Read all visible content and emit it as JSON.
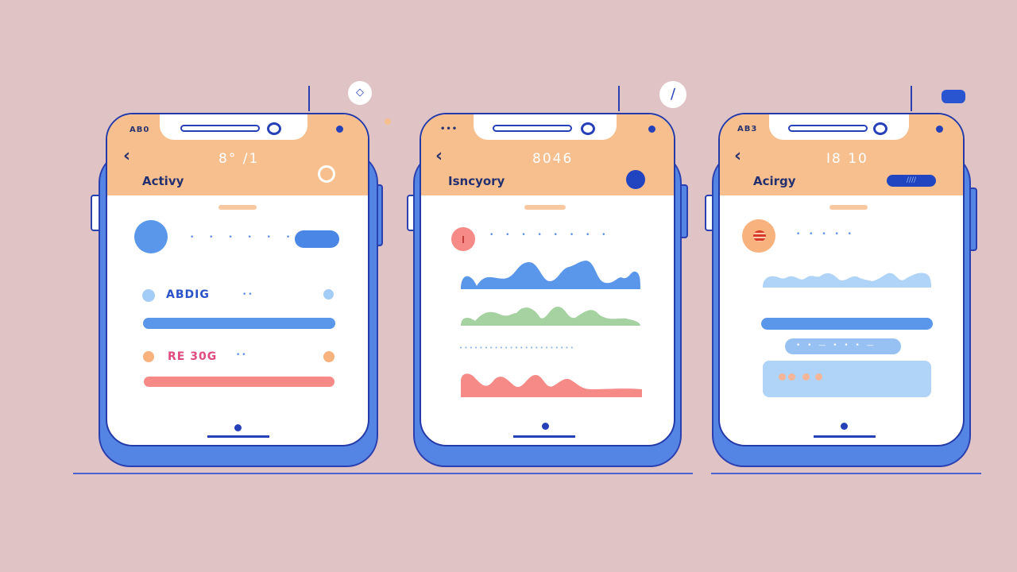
{
  "colors": {
    "background": "#e0c3c4",
    "phone": "#5484e4",
    "header": "#f8bf8e",
    "accent": "#2640b8",
    "blue_bar": "#5a96ea",
    "red_bar": "#f68a86",
    "green_wave": "#a6d2a2",
    "light_blue": "#b0d4f7"
  },
  "phones": [
    {
      "status": "AB0",
      "time": "8° /1",
      "title": "Activy",
      "rows": [
        {
          "label": "ABDIG",
          "dots": "••"
        },
        {
          "label": "RE 30G",
          "dots": "••"
        }
      ],
      "top_dots": "•  •  • •  •  •"
    },
    {
      "status": "•••",
      "time": "8046",
      "title": "Isncyory",
      "top_dots": "• •   • •   • •  • •",
      "mid_dots": "• • •  • • • • • • • • • • • • • • • • • • • •"
    },
    {
      "status": "AB3",
      "time": "I8 10",
      "title": "Acirgy",
      "pill_label": "////",
      "top_dots": "•          • •   • •",
      "pill2_dots": "• •  —  • •  • —"
    }
  ]
}
